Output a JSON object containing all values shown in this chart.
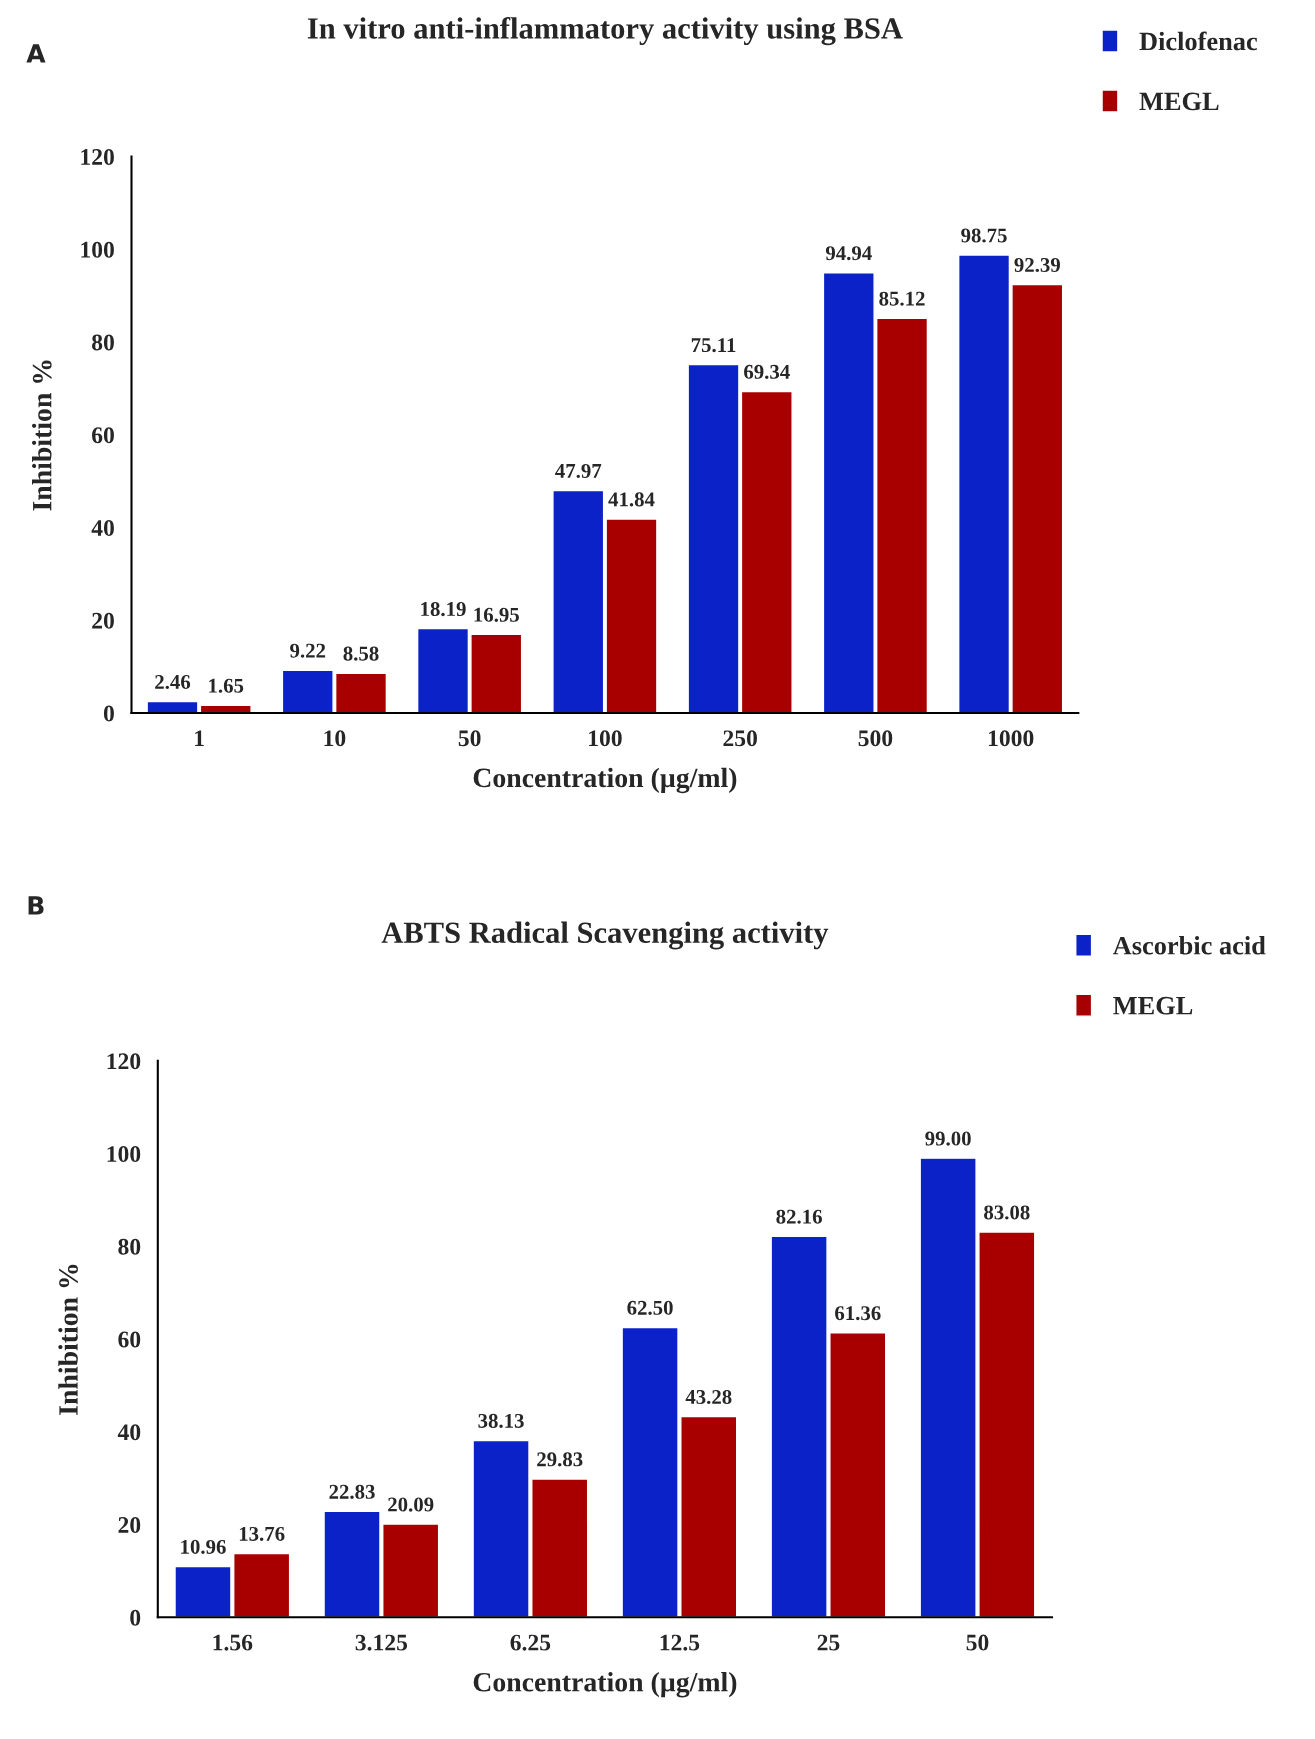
{
  "chart_data": [
    {
      "type": "bar",
      "title": "In vitro anti-inflammatory activity using BSA",
      "xlabel": "Concentration (µg/ml)",
      "ylabel": "Inhibition %",
      "annotations": [
        "A"
      ],
      "categories": [
        "1",
        "10",
        "50",
        "100",
        "250",
        "500",
        "1000"
      ],
      "series": [
        {
          "name": "Diclofenac",
          "color": "#0a22c8",
          "values": [
            2.46,
            9.22,
            18.19,
            47.97,
            75.11,
            94.94,
            98.75
          ]
        },
        {
          "name": "MEGL",
          "color": "#a80000",
          "values": [
            1.65,
            8.58,
            16.95,
            41.84,
            69.34,
            85.12,
            92.39
          ]
        }
      ],
      "ylim": [
        0,
        120
      ],
      "yticks": [
        0,
        20,
        40,
        60,
        80,
        100,
        120
      ],
      "data_labels": true,
      "legend": "top right",
      "grid": false
    },
    {
      "type": "bar",
      "title": "ABTS Radical Scavenging activity",
      "xlabel": "Concentration (µg/ml)",
      "ylabel": "Inhibition %",
      "annotations": [
        "B"
      ],
      "categories": [
        "1.56",
        "3.125",
        "6.25",
        "12.5",
        "25",
        "50"
      ],
      "series": [
        {
          "name": "Ascorbic acid",
          "color": "#0a22c8",
          "values": [
            10.96,
            22.83,
            38.13,
            62.5,
            82.16,
            99.0
          ],
          "value_labels": [
            "10.96",
            "22.83",
            "38.13",
            "62.50",
            "82.16",
            "99.00"
          ]
        },
        {
          "name": "MEGL",
          "color": "#a80000",
          "values": [
            13.76,
            20.09,
            29.83,
            43.28,
            61.36,
            83.08
          ],
          "value_labels": [
            "13.76",
            "20.09",
            "29.83",
            "43.28",
            "61.36",
            "83.08"
          ]
        }
      ],
      "ylim": [
        0,
        120
      ],
      "yticks": [
        0,
        20,
        40,
        60,
        80,
        100,
        120
      ],
      "legend": "top right",
      "grid": false
    }
  ]
}
